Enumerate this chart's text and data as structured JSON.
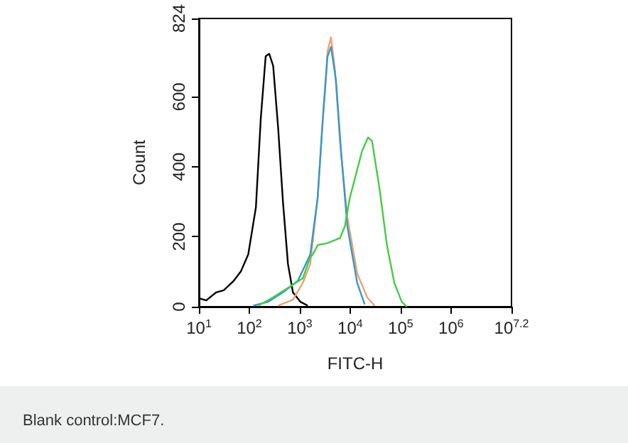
{
  "chart_data": {
    "type": "line",
    "xlabel": "FITC-H",
    "ylabel": "Count",
    "log": "x",
    "marker": "none",
    "grid": false,
    "xlim": [
      10,
      15848932
    ],
    "ylim": [
      0,
      824
    ],
    "xticks": [
      {
        "value": 10,
        "label": "10$^{1}$"
      },
      {
        "value": 100,
        "label": "10$^{2}$"
      },
      {
        "value": 1000,
        "label": "10$^{3}$"
      },
      {
        "value": 10000,
        "label": "10$^{4}$"
      },
      {
        "value": 100000,
        "label": "10$^{5}$"
      },
      {
        "value": 1000000,
        "label": "10$^{6}$"
      },
      {
        "value": 15848932,
        "label": "10$^{7.2}$"
      }
    ],
    "yticks": [
      0,
      200,
      400,
      600,
      824
    ],
    "series": [
      {
        "color": "#000000",
        "x": [
          10,
          14,
          22,
          31,
          49,
          68,
          95,
          135,
          169,
          211,
          248,
          297,
          372,
          466,
          584,
          732,
          1028,
          1442
        ],
        "values": [
          24,
          18,
          41,
          47,
          74,
          101,
          149,
          284,
          540,
          716,
          723,
          689,
          513,
          297,
          122,
          41,
          14,
          3
        ]
      },
      {
        "color": "#f0a070",
        "x": [
          372,
          732,
          1151,
          1614,
          2265,
          2839,
          3560,
          4171,
          5000,
          6266,
          8790,
          13800,
          21700,
          30500
        ],
        "values": [
          3,
          20,
          68,
          122,
          311,
          527,
          730,
          770,
          676,
          473,
          257,
          95,
          27,
          3
        ]
      },
      {
        "color": "#3399cc",
        "x": [
          120,
          237,
          466,
          918,
          1614,
          2265,
          2839,
          3560,
          4171,
          5227,
          6700,
          8790,
          13800,
          19400
        ],
        "values": [
          3,
          14,
          41,
          74,
          149,
          311,
          527,
          716,
          743,
          648,
          432,
          230,
          68,
          7
        ]
      },
      {
        "color": "#44cc44",
        "x": [
          151,
          297,
          584,
          1151,
          1614,
          1808,
          2265,
          3560,
          6266,
          7852,
          9840,
          13800,
          17300,
          22700,
          27200,
          38200,
          53600,
          75200,
          105700,
          132400
        ],
        "values": [
          3,
          27,
          54,
          81,
          142,
          149,
          176,
          182,
          196,
          230,
          311,
          392,
          446,
          484,
          473,
          338,
          176,
          68,
          14,
          0
        ]
      }
    ],
    "annotations": [
      "Blank control:MCF7."
    ]
  }
}
